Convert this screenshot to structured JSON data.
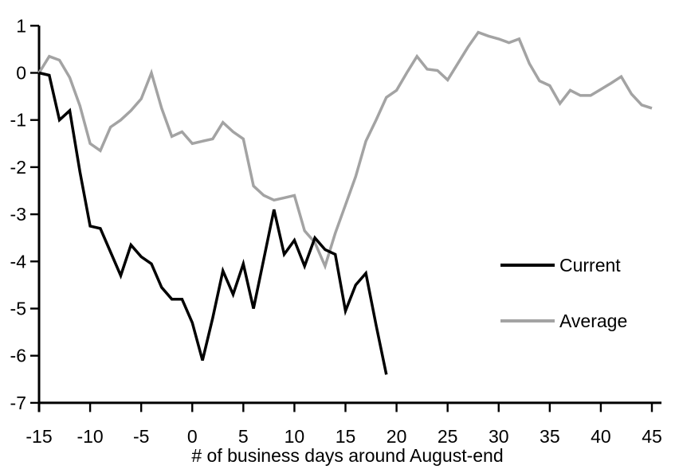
{
  "chart_data": {
    "type": "line",
    "title": "",
    "xlabel": "# of business days around August-end",
    "ylabel": "",
    "xlim": [
      -15,
      45
    ],
    "ylim": [
      -7,
      1
    ],
    "x_ticks": [
      -15,
      -10,
      -5,
      0,
      5,
      10,
      15,
      20,
      25,
      30,
      35,
      40,
      45
    ],
    "y_ticks": [
      1,
      0,
      -1,
      -2,
      -3,
      -4,
      -5,
      -6,
      -7
    ],
    "grid": false,
    "legend_position": "middle-right",
    "axis_color": "#000000",
    "background_color": "#ffffff",
    "series": [
      {
        "name": "Current",
        "color": "#000000",
        "x": [
          -15,
          -14,
          -13,
          -12,
          -11,
          -10,
          -9,
          -8,
          -7,
          -6,
          -5,
          -4,
          -3,
          -2,
          -1,
          0,
          1,
          2,
          3,
          4,
          5,
          6,
          7,
          8,
          9,
          10,
          11,
          12,
          13,
          14,
          15,
          16,
          17,
          18,
          19
        ],
        "values": [
          0,
          -0.05,
          -1.0,
          -0.8,
          -2.1,
          -3.25,
          -3.3,
          -3.8,
          -4.3,
          -3.65,
          -3.9,
          -4.05,
          -4.55,
          -4.8,
          -4.8,
          -5.3,
          -6.1,
          -5.2,
          -4.2,
          -4.7,
          -4.05,
          -5.0,
          -3.95,
          -2.9,
          -3.85,
          -3.55,
          -4.1,
          -3.5,
          -3.75,
          -3.85,
          -5.05,
          -4.5,
          -4.25,
          -5.35,
          -6.4
        ]
      },
      {
        "name": "Average",
        "color": "#a3a3a3",
        "x": [
          -15,
          -14,
          -13,
          -12,
          -11,
          -10,
          -9,
          -8,
          -7,
          -6,
          -5,
          -4,
          -3,
          -2,
          -1,
          0,
          1,
          2,
          3,
          4,
          5,
          6,
          7,
          8,
          9,
          10,
          11,
          12,
          13,
          14,
          15,
          16,
          17,
          18,
          19,
          20,
          21,
          22,
          23,
          24,
          25,
          26,
          27,
          28,
          29,
          30,
          31,
          32,
          33,
          34,
          35,
          36,
          37,
          38,
          39,
          40,
          41,
          42,
          43,
          44,
          45
        ],
        "values": [
          0,
          0.35,
          0.27,
          -0.1,
          -0.7,
          -1.5,
          -1.65,
          -1.15,
          -1.0,
          -0.8,
          -0.55,
          0.0,
          -0.75,
          -1.35,
          -1.25,
          -1.5,
          -1.45,
          -1.4,
          -1.05,
          -1.25,
          -1.4,
          -2.4,
          -2.6,
          -2.7,
          -2.65,
          -2.6,
          -3.35,
          -3.6,
          -4.1,
          -3.4,
          -2.8,
          -2.2,
          -1.45,
          -1.0,
          -0.52,
          -0.37,
          0.0,
          0.35,
          0.08,
          0.05,
          -0.15,
          0.2,
          0.55,
          0.86,
          0.78,
          0.72,
          0.64,
          0.72,
          0.2,
          -0.17,
          -0.27,
          -0.65,
          -0.37,
          -0.48,
          -0.48,
          -0.35,
          -0.22,
          -0.08,
          -0.45,
          -0.68,
          -0.75
        ]
      }
    ]
  }
}
